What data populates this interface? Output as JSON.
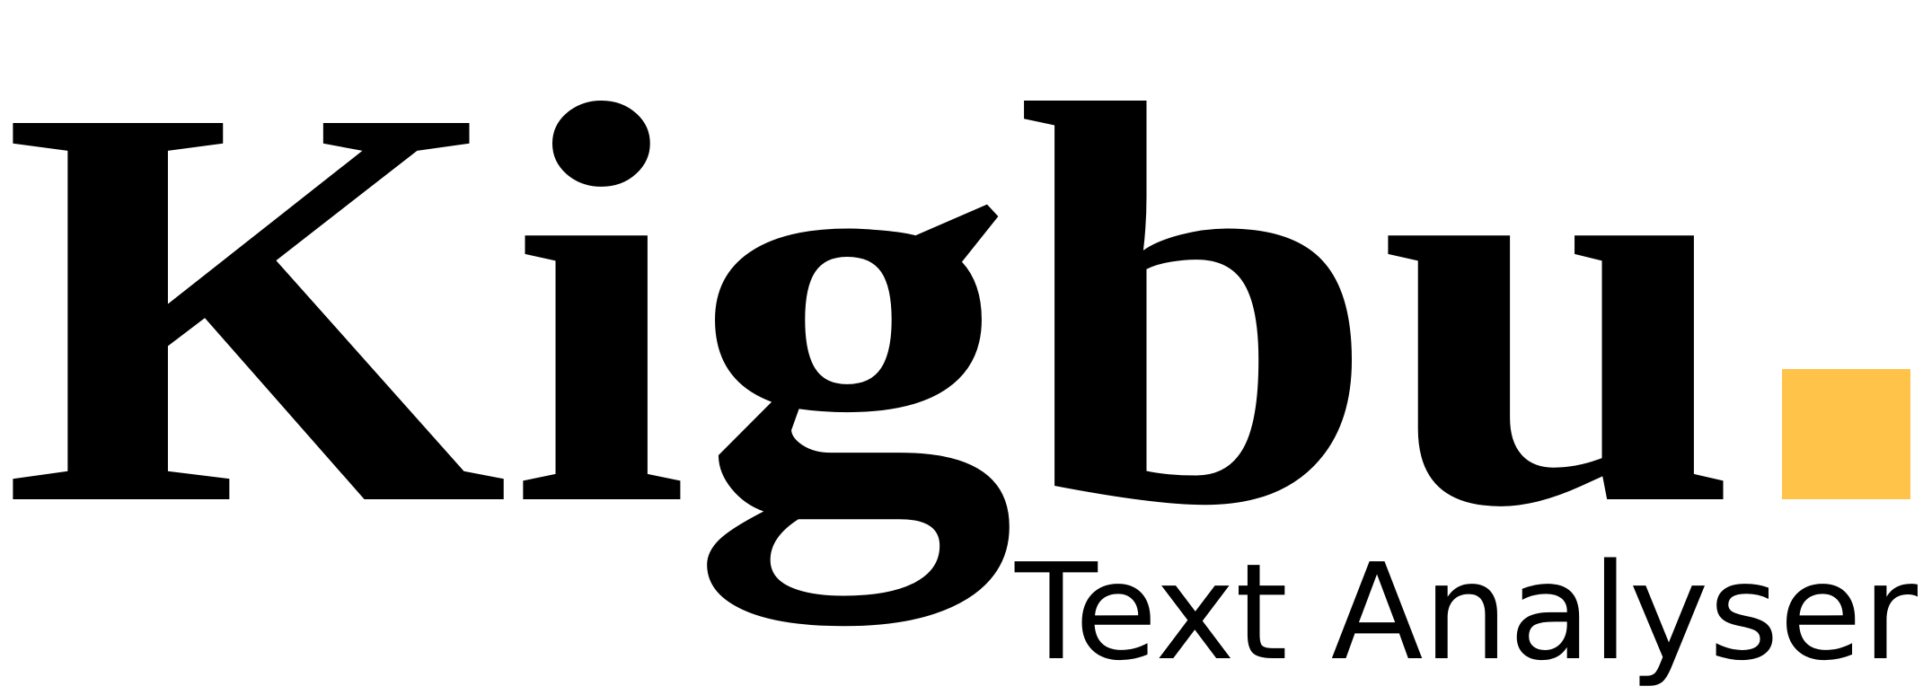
{
  "logo": {
    "wordmark": "Kigbu",
    "tagline": "Text Analyser"
  }
}
